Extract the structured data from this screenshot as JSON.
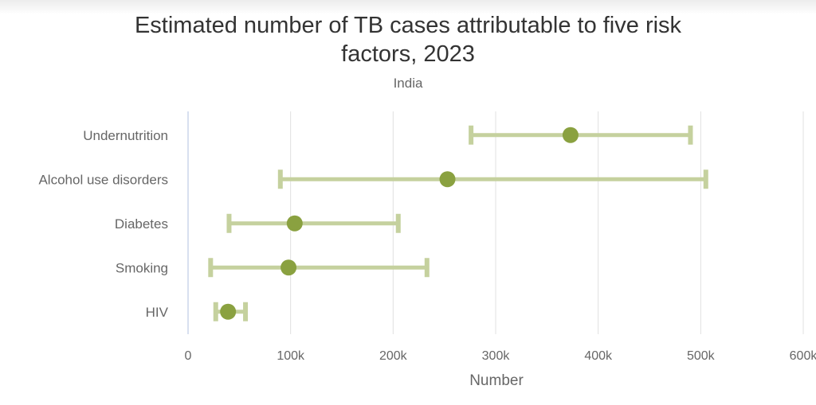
{
  "chart_data": {
    "type": "errorbar-dot",
    "title": "Estimated number of TB cases attributable to five risk factors, 2023",
    "title_lines": [
      "Estimated number of TB cases attributable to five risk",
      "factors, 2023"
    ],
    "subtitle": "India",
    "xlabel": "Number",
    "ylabel": "",
    "xlim": [
      0,
      600000
    ],
    "xticks": [
      0,
      100000,
      200000,
      300000,
      400000,
      500000,
      600000
    ],
    "xtick_labels": [
      "0",
      "100k",
      "200k",
      "300k",
      "400k",
      "500k",
      "600k"
    ],
    "categories": [
      "Undernutrition",
      "Alcohol use disorders",
      "Diabetes",
      "Smoking",
      "HIV"
    ],
    "estimate": [
      373000,
      253000,
      104000,
      98000,
      39000
    ],
    "low": [
      276000,
      90000,
      40000,
      22000,
      27000
    ],
    "high": [
      490000,
      505000,
      205000,
      233000,
      56000
    ],
    "colors": {
      "point": "#8aa140",
      "bar": "#c5d19e",
      "grid": "#e0e0e0",
      "axis": "#ccd6eb"
    }
  }
}
